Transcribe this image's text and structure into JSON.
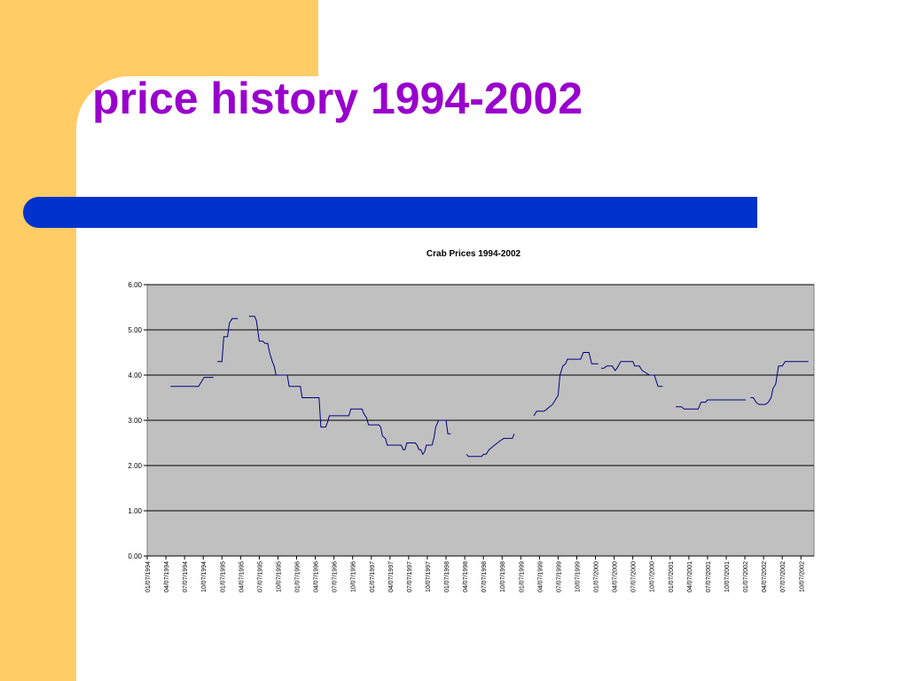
{
  "slide": {
    "title": "price history 1994-2002"
  },
  "colors": {
    "accent_band": "#ffcc66",
    "title_color": "#9900cc",
    "title_bar": "#0033cc",
    "plot_background": "#c0c0c0",
    "line_color": "#000080"
  },
  "chart_data": {
    "type": "line",
    "title": "Crab Prices 1994-2002",
    "xlabel": "",
    "ylabel": "",
    "ylim": [
      0,
      6
    ],
    "yticks": [
      "0.00",
      "1.00",
      "2.00",
      "3.00",
      "4.00",
      "5.00",
      "6.00"
    ],
    "grid": true,
    "legend": "none",
    "categories": [
      "01/07/1994",
      "04/07/1994",
      "07/07/1994",
      "10/07/1994",
      "01/07/1995",
      "04/07/1995",
      "07/07/1995",
      "10/07/1995",
      "01/07/1996",
      "04/07/1996",
      "07/07/1996",
      "10/07/1996",
      "01/07/1997",
      "04/07/1997",
      "07/07/1997",
      "10/07/1997",
      "01/07/1998",
      "04/07/1998",
      "07/07/1998",
      "10/07/1998",
      "01/07/1999",
      "04/07/1999",
      "07/07/1999",
      "10/07/1999",
      "01/07/2000",
      "04/07/2000",
      "07/07/2000",
      "10/07/2000",
      "01/07/2001",
      "04/07/2001",
      "07/07/2001",
      "10/07/2001",
      "01/07/2002",
      "04/07/2002",
      "07/07/2002",
      "10/07/2002"
    ],
    "x_range": [
      0,
      35.4
    ],
    "series": [
      {
        "segments": [
          [
            [
              0.0,
              3.05
            ],
            [
              0.05,
              3.05
            ]
          ],
          [
            [
              1.25,
              3.75
            ],
            [
              2.75,
              3.75
            ],
            [
              2.9,
              3.85
            ],
            [
              3.05,
              3.95
            ],
            [
              3.55,
              3.95
            ]
          ],
          [
            [
              3.75,
              4.3
            ],
            [
              4.0,
              4.3
            ],
            [
              4.1,
              4.85
            ],
            [
              4.3,
              4.85
            ],
            [
              4.4,
              5.15
            ],
            [
              4.55,
              5.25
            ],
            [
              4.85,
              5.25
            ]
          ],
          [
            [
              5.45,
              5.3
            ],
            [
              5.75,
              5.3
            ],
            [
              5.85,
              5.2
            ],
            [
              6.0,
              4.75
            ],
            [
              6.2,
              4.75
            ],
            [
              6.3,
              4.7
            ],
            [
              6.45,
              4.7
            ],
            [
              6.55,
              4.5
            ],
            [
              6.7,
              4.3
            ],
            [
              6.8,
              4.2
            ],
            [
              6.9,
              4.0
            ],
            [
              7.5,
              4.0
            ],
            [
              7.6,
              3.75
            ],
            [
              8.2,
              3.75
            ],
            [
              8.3,
              3.5
            ],
            [
              9.2,
              3.5
            ],
            [
              9.3,
              2.85
            ],
            [
              9.55,
              2.85
            ],
            [
              9.65,
              2.95
            ],
            [
              9.75,
              3.1
            ],
            [
              10.8,
              3.1
            ],
            [
              10.9,
              3.25
            ],
            [
              11.5,
              3.25
            ],
            [
              11.6,
              3.15
            ],
            [
              11.75,
              3.05
            ],
            [
              11.85,
              2.9
            ],
            [
              12.4,
              2.9
            ],
            [
              12.5,
              2.85
            ],
            [
              12.6,
              2.65
            ],
            [
              12.75,
              2.6
            ],
            [
              12.85,
              2.45
            ],
            [
              13.6,
              2.45
            ],
            [
              13.7,
              2.35
            ],
            [
              13.8,
              2.35
            ],
            [
              13.9,
              2.5
            ],
            [
              14.35,
              2.5
            ],
            [
              14.45,
              2.45
            ],
            [
              14.55,
              2.35
            ],
            [
              14.65,
              2.35
            ],
            [
              14.75,
              2.25
            ],
            [
              14.85,
              2.3
            ],
            [
              14.95,
              2.45
            ],
            [
              15.25,
              2.45
            ],
            [
              15.35,
              2.6
            ],
            [
              15.45,
              2.85
            ],
            [
              15.6,
              3.0
            ],
            [
              16.0,
              3.0
            ],
            [
              16.1,
              2.7
            ],
            [
              16.25,
              2.7
            ]
          ],
          [
            [
              17.1,
              2.25
            ],
            [
              17.2,
              2.2
            ],
            [
              17.9,
              2.2
            ],
            [
              18.0,
              2.25
            ],
            [
              18.15,
              2.25
            ],
            [
              18.3,
              2.35
            ],
            [
              18.45,
              2.4
            ],
            [
              18.6,
              2.45
            ],
            [
              18.75,
              2.5
            ],
            [
              18.9,
              2.55
            ],
            [
              19.1,
              2.6
            ],
            [
              19.55,
              2.6
            ],
            [
              19.65,
              2.7
            ]
          ],
          [
            [
              20.7,
              3.1
            ],
            [
              20.85,
              3.2
            ],
            [
              21.25,
              3.2
            ],
            [
              21.4,
              3.25
            ],
            [
              21.55,
              3.3
            ],
            [
              21.7,
              3.35
            ],
            [
              21.85,
              3.45
            ],
            [
              22.0,
              3.55
            ],
            [
              22.1,
              4.0
            ],
            [
              22.25,
              4.2
            ],
            [
              22.4,
              4.25
            ],
            [
              22.5,
              4.35
            ],
            [
              23.2,
              4.35
            ],
            [
              23.35,
              4.5
            ],
            [
              23.65,
              4.5
            ],
            [
              23.8,
              4.25
            ],
            [
              24.15,
              4.25
            ]
          ],
          [
            [
              24.3,
              4.15
            ],
            [
              24.45,
              4.15
            ],
            [
              24.6,
              4.2
            ],
            [
              24.9,
              4.2
            ],
            [
              25.05,
              4.1
            ],
            [
              25.15,
              4.15
            ],
            [
              25.35,
              4.3
            ],
            [
              26.0,
              4.3
            ],
            [
              26.1,
              4.2
            ],
            [
              26.35,
              4.2
            ],
            [
              26.5,
              4.1
            ],
            [
              26.7,
              4.05
            ],
            [
              26.9,
              4.0
            ],
            [
              27.15,
              4.0
            ],
            [
              27.35,
              3.75
            ],
            [
              27.6,
              3.75
            ]
          ],
          [
            [
              28.3,
              3.3
            ],
            [
              28.6,
              3.3
            ],
            [
              28.75,
              3.25
            ],
            [
              29.5,
              3.25
            ],
            [
              29.65,
              3.4
            ],
            [
              29.9,
              3.4
            ],
            [
              30.0,
              3.45
            ],
            [
              32.05,
              3.45
            ]
          ],
          [
            [
              32.3,
              3.5
            ],
            [
              32.45,
              3.5
            ],
            [
              32.6,
              3.4
            ],
            [
              32.75,
              3.35
            ],
            [
              33.1,
              3.35
            ],
            [
              33.25,
              3.4
            ],
            [
              33.4,
              3.5
            ],
            [
              33.5,
              3.7
            ],
            [
              33.65,
              3.8
            ],
            [
              33.8,
              4.2
            ],
            [
              34.0,
              4.2
            ],
            [
              34.15,
              4.3
            ],
            [
              35.4,
              4.3
            ]
          ]
        ]
      }
    ]
  }
}
